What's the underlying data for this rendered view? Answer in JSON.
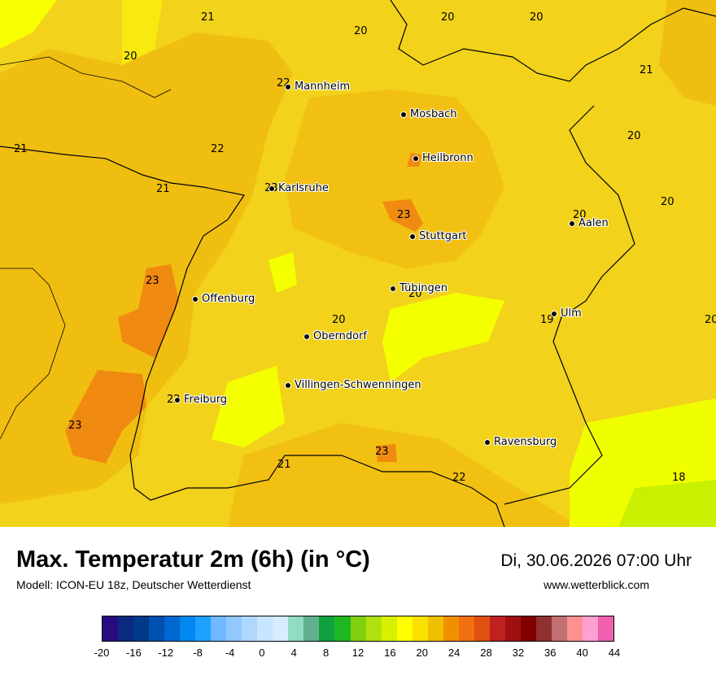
{
  "title": "Max. Temperatur 2m (6h) (in °C)",
  "model": "Modell: ICON-EU 18z, Deutscher Wetterdienst",
  "datetime": "Di, 30.06.2026 07:00 Uhr",
  "website": "www.wetterblick.com",
  "cities": [
    "Mannheim",
    "Mosbach",
    "Heilbronn",
    "Karlsruhe",
    "Stuttgart",
    "Aalen",
    "Tübingen",
    "Offenburg",
    "Ulm",
    "Oberndorf",
    "Villingen-Schwenningen",
    "Freiburg",
    "Ravensburg"
  ],
  "values": [
    "21",
    "20",
    "20",
    "20",
    "20",
    "21",
    "22",
    "21",
    "22",
    "21",
    "20",
    "20",
    "23",
    "20",
    "23",
    "20",
    "20",
    "19",
    "20",
    "23",
    "22",
    "23",
    "21",
    "23",
    "22",
    "18"
  ],
  "colors": [
    "#2a0a80",
    "#0a2a80",
    "#003a8a",
    "#0050b0",
    "#0068d0",
    "#0088f0",
    "#20a0ff",
    "#70b8ff",
    "#90c8ff",
    "#b0d8ff",
    "#c8e4ff",
    "#d8ecff",
    "#90dcc0",
    "#60b090",
    "#10a040",
    "#20b820",
    "#80d010",
    "#b0e010",
    "#d8f000",
    "#ffff00",
    "#f8e000",
    "#f0c000",
    "#f09000",
    "#f07010",
    "#e05010",
    "#c02020",
    "#a01010",
    "#800000",
    "#903030",
    "#c07070",
    "#ff9090",
    "#ffa0d0",
    "#f060b0"
  ],
  "scale_ticks": [
    "-20",
    "-16",
    "-12",
    "-8",
    "-4",
    "0",
    "4",
    "8",
    "12",
    "16",
    "20",
    "24",
    "28",
    "32",
    "36",
    "40",
    "44"
  ]
}
